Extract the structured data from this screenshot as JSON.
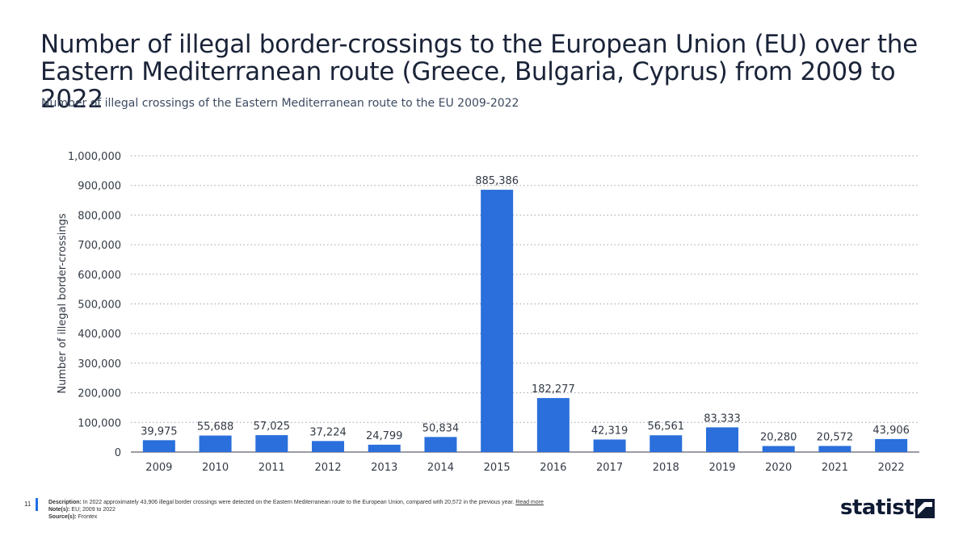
{
  "title": "Number of illegal border-crossings to the European Union (EU) over the Eastern Mediterranean route (Greece, Bulgaria, Cyprus) from 2009 to 2022",
  "subtitle": "Number of illegal crossings of the Eastern Mediterranean route to the EU 2009-2022",
  "chart_data": {
    "type": "bar",
    "categories": [
      "2009",
      "2010",
      "2011",
      "2012",
      "2013",
      "2014",
      "2015",
      "2016",
      "2017",
      "2018",
      "2019",
      "2020",
      "2021",
      "2022"
    ],
    "values": [
      39975,
      55688,
      57025,
      37224,
      24799,
      50834,
      885386,
      182277,
      42319,
      56561,
      83333,
      20280,
      20572,
      43906
    ],
    "data_labels": [
      "39,975",
      "55,688",
      "57,025",
      "37,224",
      "24,799",
      "50,834",
      "885,386",
      "182,277",
      "42,319",
      "56,561",
      "83,333",
      "20,280",
      "20,572",
      "43,906"
    ],
    "y_ticks": [
      0,
      100000,
      200000,
      300000,
      400000,
      500000,
      600000,
      700000,
      800000,
      900000,
      1000000
    ],
    "y_tick_labels": [
      "0",
      "100,000",
      "200,000",
      "300,000",
      "400,000",
      "500,000",
      "600,000",
      "700,000",
      "800,000",
      "900,000",
      "1,000,000"
    ],
    "ylim": [
      0,
      1000000
    ],
    "xlabel": "",
    "ylabel": "Number of illegal border-crossings",
    "grid": true,
    "bar_color": "#2a6fdb",
    "grid_color": "#9aa3ad"
  },
  "footer": {
    "page_number": "11",
    "description_label": "Description:",
    "description_text": "In 2022 approximately 43,906 illegal border crossings were detected on the Eastern Mediterranean route to the European Union, compared with 20,572 in the previous year.",
    "read_more": "Read more",
    "notes_label": "Note(s):",
    "notes_text": "EU; 2009 to 2022",
    "source_label": "Source(s):",
    "source_text": "Frontex",
    "brand": "statista"
  }
}
